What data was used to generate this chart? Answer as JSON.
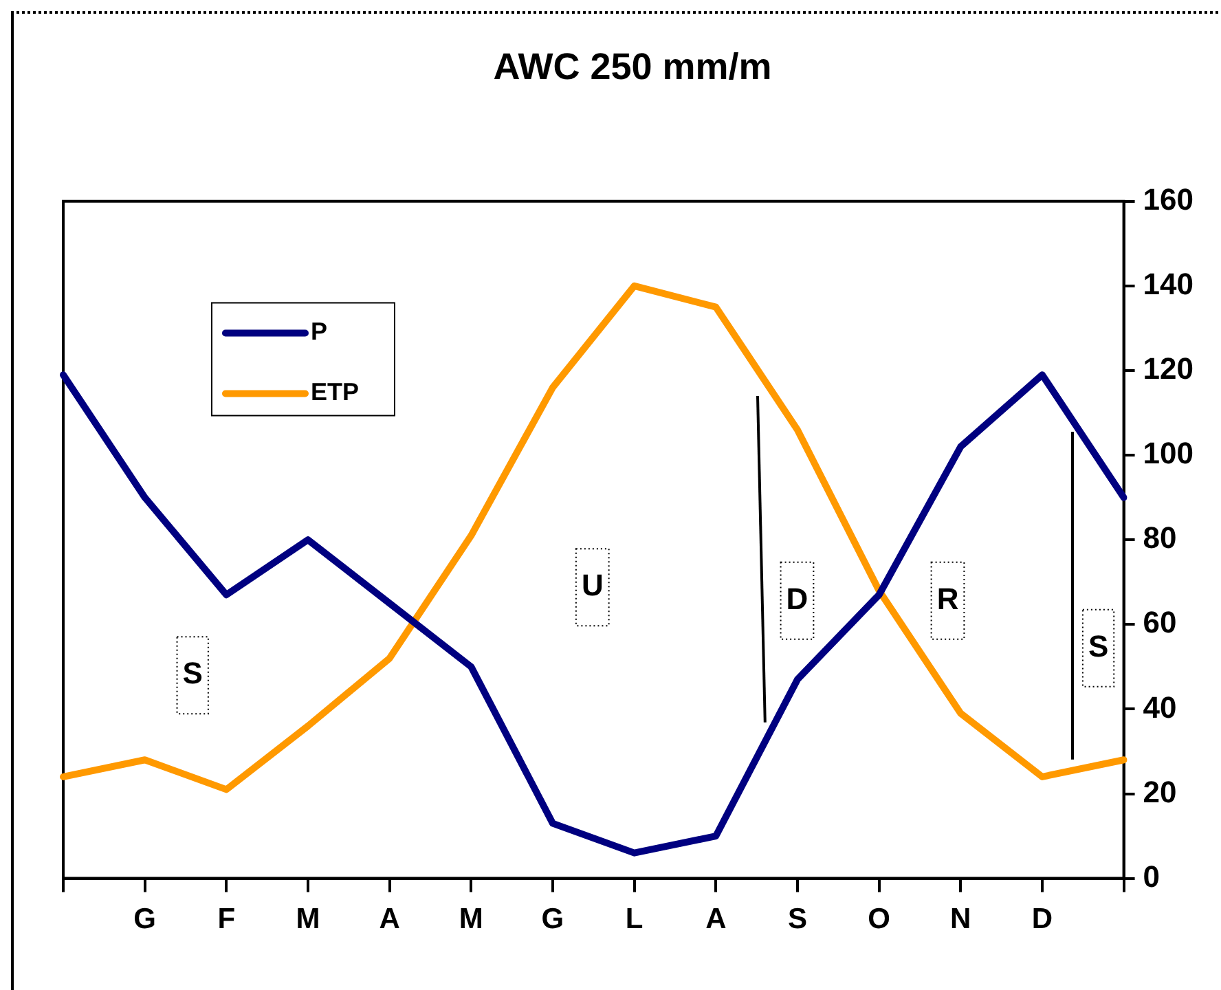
{
  "chart_data": {
    "type": "line",
    "title": "AWC 250 mm/m",
    "categories": [
      null,
      "G",
      "F",
      "M",
      "A",
      "M",
      "G",
      "L",
      "A",
      "S",
      "O",
      "N",
      "D",
      null
    ],
    "series": [
      {
        "name": "P",
        "color": "#000080",
        "values": [
          119,
          90,
          67,
          80,
          65,
          50,
          13,
          6,
          10,
          47,
          67,
          102,
          119,
          90
        ]
      },
      {
        "name": "ETP",
        "color": "#ff9900",
        "values": [
          24,
          28,
          21,
          36,
          52,
          81,
          116,
          140,
          135,
          106,
          68,
          39,
          24,
          28
        ]
      }
    ],
    "ylim": [
      0,
      160
    ],
    "yticks": [
      0,
      20,
      40,
      60,
      80,
      100,
      120,
      140,
      160
    ],
    "grid": false,
    "legend": "top left",
    "marker": "none",
    "line_style": "solid",
    "annotations": [
      "S",
      "U",
      "D",
      "R",
      "S"
    ]
  }
}
